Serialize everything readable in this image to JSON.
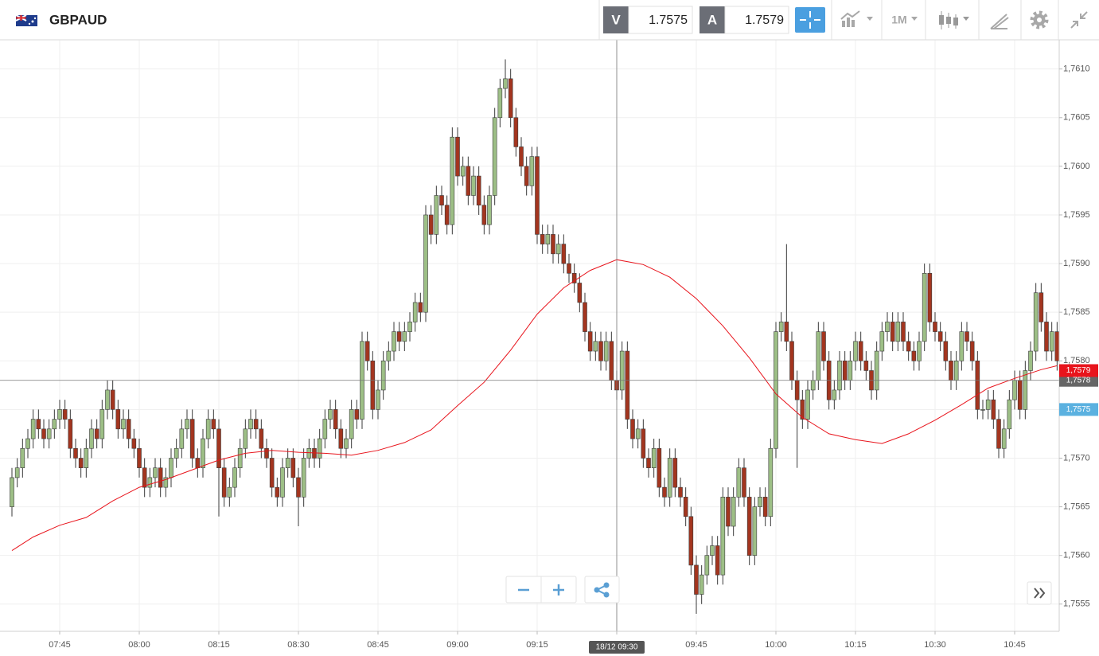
{
  "toolbar": {
    "symbol": "GBPAUD",
    "bid_label": "V",
    "bid": "1.7575",
    "ask_label": "A",
    "ask": "1.7579",
    "timeframe": "1M"
  },
  "chart_data": {
    "type": "candlestick",
    "x": [
      "07:36",
      "07:37",
      "07:38",
      "07:39",
      "07:40",
      "07:41",
      "07:42",
      "07:43",
      "07:44",
      "07:45",
      "07:46",
      "07:47",
      "07:48",
      "07:49",
      "07:50",
      "07:51",
      "07:52",
      "07:53",
      "07:54",
      "07:55",
      "07:56",
      "07:57",
      "07:58",
      "07:59",
      "08:00",
      "08:01",
      "08:02",
      "08:03",
      "08:04",
      "08:05",
      "08:06",
      "08:07",
      "08:08",
      "08:09",
      "08:10",
      "08:11",
      "08:12",
      "08:13",
      "08:14",
      "08:15",
      "08:16",
      "08:17",
      "08:18",
      "08:19",
      "08:20",
      "08:21",
      "08:22",
      "08:23",
      "08:24",
      "08:25",
      "08:26",
      "08:27",
      "08:28",
      "08:29",
      "08:30",
      "08:31",
      "08:32",
      "08:33",
      "08:34",
      "08:35",
      "08:36",
      "08:37",
      "08:38",
      "08:39",
      "08:40",
      "08:41",
      "08:42",
      "08:43",
      "08:44",
      "08:45",
      "08:46",
      "08:47",
      "08:48",
      "08:49",
      "08:50",
      "08:51",
      "08:52",
      "08:53",
      "08:54",
      "08:55",
      "08:56",
      "08:57",
      "08:58",
      "08:59",
      "09:00",
      "09:01",
      "09:02",
      "09:03",
      "09:04",
      "09:05",
      "09:06",
      "09:07",
      "09:08",
      "09:09",
      "09:10",
      "09:11",
      "09:12",
      "09:13",
      "09:14",
      "09:15",
      "09:16",
      "09:17",
      "09:18",
      "09:19",
      "09:20",
      "09:21",
      "09:22",
      "09:23",
      "09:24",
      "09:25",
      "09:26",
      "09:27",
      "09:28",
      "09:29",
      "09:30",
      "09:31",
      "09:32",
      "09:33",
      "09:34",
      "09:35",
      "09:36",
      "09:37",
      "09:38",
      "09:39",
      "09:40",
      "09:41",
      "09:42",
      "09:43",
      "09:44",
      "09:45",
      "09:46",
      "09:47",
      "09:48",
      "09:49",
      "09:50",
      "09:51",
      "09:52",
      "09:53",
      "09:54",
      "09:55",
      "09:56",
      "09:57",
      "09:58",
      "09:59",
      "10:00",
      "10:01",
      "10:02",
      "10:03",
      "10:04",
      "10:05",
      "10:06",
      "10:07",
      "10:08",
      "10:09",
      "10:10",
      "10:11",
      "10:12",
      "10:13",
      "10:14",
      "10:15",
      "10:16",
      "10:17",
      "10:18",
      "10:19",
      "10:20",
      "10:21",
      "10:22",
      "10:23",
      "10:24",
      "10:25",
      "10:26",
      "10:27",
      "10:28",
      "10:29",
      "10:30",
      "10:31",
      "10:32",
      "10:33",
      "10:34",
      "10:35",
      "10:36",
      "10:37",
      "10:38",
      "10:39",
      "10:40",
      "10:41",
      "10:42",
      "10:43",
      "10:44",
      "10:45",
      "10:46",
      "10:47",
      "10:48",
      "10:49",
      "10:50",
      "10:51",
      "10:52",
      "10:53"
    ],
    "open": [
      1.7565,
      1.7568,
      1.7569,
      1.7571,
      1.7572,
      1.7574,
      1.7573,
      1.7572,
      1.7573,
      1.7574,
      1.7575,
      1.7574,
      1.7571,
      1.757,
      1.7569,
      1.7571,
      1.7573,
      1.7572,
      1.7575,
      1.7577,
      1.7575,
      1.7573,
      1.7574,
      1.7572,
      1.7571,
      1.7569,
      1.7567,
      1.7568,
      1.7569,
      1.7567,
      1.7568,
      1.757,
      1.7571,
      1.7573,
      1.7574,
      1.757,
      1.7569,
      1.7572,
      1.7574,
      1.7573,
      1.7569,
      1.7566,
      1.7567,
      1.7569,
      1.7571,
      1.7573,
      1.7574,
      1.7573,
      1.7571,
      1.757,
      1.7567,
      1.7566,
      1.7569,
      1.757,
      1.7568,
      1.7566,
      1.757,
      1.7571,
      1.757,
      1.7572,
      1.7574,
      1.7575,
      1.7573,
      1.7571,
      1.7572,
      1.7575,
      1.7574,
      1.7582,
      1.758,
      1.7575,
      1.7577,
      1.758,
      1.7581,
      1.7583,
      1.7582,
      1.7583,
      1.7584,
      1.7586,
      1.7585,
      1.7595,
      1.7593,
      1.7597,
      1.7596,
      1.7594,
      1.7603,
      1.7599,
      1.76,
      1.7597,
      1.7599,
      1.7596,
      1.7594,
      1.7597,
      1.7605,
      1.7608,
      1.7609,
      1.7605,
      1.7602,
      1.76,
      1.7598,
      1.7601,
      1.7593,
      1.7592,
      1.7593,
      1.7591,
      1.7592,
      1.759,
      1.7589,
      1.7588,
      1.7586,
      1.7583,
      1.7581,
      1.7582,
      1.758,
      1.7582,
      1.7578,
      1.7577,
      1.7581,
      1.7574,
      1.7572,
      1.7573,
      1.757,
      1.7569,
      1.7571,
      1.7567,
      1.7566,
      1.757,
      1.7567,
      1.7566,
      1.7564,
      1.7559,
      1.7556,
      1.7558,
      1.756,
      1.7561,
      1.7558,
      1.7566,
      1.7563,
      1.7566,
      1.7569,
      1.7566,
      1.756,
      1.7565,
      1.7566,
      1.7564,
      1.7571,
      1.7583,
      1.7584,
      1.7582,
      1.7578,
      1.7576,
      1.7574,
      1.7577,
      1.7578,
      1.7583,
      1.758,
      1.7576,
      1.7577,
      1.758,
      1.7578,
      1.758,
      1.7582,
      1.758,
      1.7579,
      1.7577,
      1.7581,
      1.7583,
      1.7584,
      1.7582,
      1.7584,
      1.7582,
      1.7581,
      1.758,
      1.7582,
      1.7589,
      1.7584,
      1.7583,
      1.7582,
      1.758,
      1.7578,
      1.758,
      1.7583,
      1.7582,
      1.758,
      1.7575,
      1.7575,
      1.7576,
      1.7574,
      1.7571,
      1.7573,
      1.7576,
      1.7578,
      1.7575,
      1.7579,
      1.7581,
      1.7587,
      1.7584,
      1.7581,
      1.7583
    ],
    "high": [
      1.7569,
      1.757,
      1.7572,
      1.7573,
      1.7575,
      1.7575,
      1.7574,
      1.7574,
      1.7575,
      1.7576,
      1.7576,
      1.7575,
      1.7572,
      1.7571,
      1.7572,
      1.7574,
      1.7574,
      1.7576,
      1.7578,
      1.7578,
      1.7576,
      1.7575,
      1.7575,
      1.7573,
      1.7572,
      1.757,
      1.7569,
      1.757,
      1.757,
      1.7569,
      1.7571,
      1.7572,
      1.7574,
      1.7575,
      1.7575,
      1.7571,
      1.7573,
      1.7575,
      1.7575,
      1.7574,
      1.757,
      1.7568,
      1.757,
      1.7572,
      1.7574,
      1.7575,
      1.7575,
      1.7574,
      1.7572,
      1.7571,
      1.7568,
      1.757,
      1.7571,
      1.7571,
      1.7569,
      1.7571,
      1.7572,
      1.7572,
      1.7573,
      1.7575,
      1.7576,
      1.7576,
      1.7574,
      1.7573,
      1.7576,
      1.7576,
      1.7583,
      1.7583,
      1.7581,
      1.7578,
      1.7581,
      1.7582,
      1.7584,
      1.7584,
      1.7584,
      1.7585,
      1.7587,
      1.7587,
      1.7596,
      1.7596,
      1.7598,
      1.7598,
      1.7597,
      1.7604,
      1.7604,
      1.7601,
      1.7601,
      1.76,
      1.76,
      1.7597,
      1.7598,
      1.7606,
      1.7609,
      1.7611,
      1.761,
      1.7606,
      1.7603,
      1.7601,
      1.7602,
      1.7602,
      1.7594,
      1.7594,
      1.7594,
      1.7593,
      1.7593,
      1.7591,
      1.759,
      1.7589,
      1.7587,
      1.7584,
      1.7583,
      1.7583,
      1.7583,
      1.7583,
      1.7579,
      1.7582,
      1.7582,
      1.7575,
      1.7574,
      1.7574,
      1.7571,
      1.7572,
      1.7572,
      1.7568,
      1.7571,
      1.7571,
      1.7568,
      1.7567,
      1.7565,
      1.756,
      1.7559,
      1.7561,
      1.7562,
      1.7562,
      1.7567,
      1.7567,
      1.7567,
      1.757,
      1.757,
      1.7567,
      1.7566,
      1.7567,
      1.7567,
      1.7572,
      1.7584,
      1.7585,
      1.7592,
      1.7583,
      1.7579,
      1.7577,
      1.7578,
      1.7579,
      1.7584,
      1.7584,
      1.7581,
      1.7578,
      1.7581,
      1.7581,
      1.7581,
      1.7583,
      1.7583,
      1.7581,
      1.758,
      1.7582,
      1.7584,
      1.7585,
      1.7585,
      1.7585,
      1.7585,
      1.7583,
      1.7582,
      1.7583,
      1.759,
      1.759,
      1.7585,
      1.7584,
      1.7583,
      1.7581,
      1.7581,
      1.7584,
      1.7584,
      1.7583,
      1.7581,
      1.7576,
      1.7577,
      1.7577,
      1.7575,
      1.7574,
      1.7577,
      1.7579,
      1.7579,
      1.758,
      1.7582,
      1.7588,
      1.7588,
      1.7585,
      1.7584,
      1.7584
    ],
    "low": [
      1.7564,
      1.7567,
      1.7568,
      1.757,
      1.7571,
      1.7572,
      1.7571,
      1.7571,
      1.7572,
      1.7573,
      1.7573,
      1.757,
      1.7569,
      1.7568,
      1.7568,
      1.757,
      1.7571,
      1.7571,
      1.7574,
      1.7574,
      1.7572,
      1.7572,
      1.7571,
      1.757,
      1.7568,
      1.7566,
      1.7566,
      1.7567,
      1.7566,
      1.7566,
      1.7567,
      1.7569,
      1.757,
      1.7572,
      1.7569,
      1.7568,
      1.7568,
      1.7571,
      1.7572,
      1.7564,
      1.7565,
      1.7565,
      1.7566,
      1.7568,
      1.757,
      1.7572,
      1.7572,
      1.757,
      1.7569,
      1.7566,
      1.7565,
      1.7565,
      1.7568,
      1.7567,
      1.7563,
      1.7565,
      1.7569,
      1.7569,
      1.7569,
      1.7571,
      1.7573,
      1.7572,
      1.757,
      1.757,
      1.7571,
      1.7573,
      1.7573,
      1.7579,
      1.7574,
      1.7574,
      1.7576,
      1.7579,
      1.758,
      1.7581,
      1.7581,
      1.7582,
      1.7583,
      1.7584,
      1.7584,
      1.7592,
      1.7592,
      1.7595,
      1.7593,
      1.7593,
      1.7598,
      1.7598,
      1.7596,
      1.7596,
      1.7595,
      1.7593,
      1.7593,
      1.7596,
      1.7604,
      1.7607,
      1.7604,
      1.7601,
      1.7599,
      1.7597,
      1.7597,
      1.7592,
      1.7591,
      1.7591,
      1.759,
      1.759,
      1.7589,
      1.7588,
      1.7587,
      1.7585,
      1.7582,
      1.758,
      1.758,
      1.7579,
      1.7579,
      1.7577,
      1.7576,
      1.7576,
      1.7573,
      1.7571,
      1.7571,
      1.7569,
      1.7568,
      1.7568,
      1.7566,
      1.7565,
      1.7565,
      1.7566,
      1.7565,
      1.7563,
      1.7558,
      1.7554,
      1.7555,
      1.7557,
      1.7559,
      1.7557,
      1.7557,
      1.7562,
      1.7562,
      1.7565,
      1.7565,
      1.7559,
      1.7559,
      1.7564,
      1.7563,
      1.7563,
      1.757,
      1.7582,
      1.7581,
      1.7577,
      1.7569,
      1.7573,
      1.7573,
      1.7576,
      1.7577,
      1.7579,
      1.7575,
      1.7575,
      1.7576,
      1.7577,
      1.7577,
      1.7579,
      1.7579,
      1.7578,
      1.7576,
      1.7576,
      1.758,
      1.7582,
      1.7581,
      1.7581,
      1.7581,
      1.758,
      1.7579,
      1.7579,
      1.7581,
      1.7583,
      1.7582,
      1.7581,
      1.7579,
      1.7577,
      1.7577,
      1.7579,
      1.7581,
      1.7579,
      1.7574,
      1.7574,
      1.7574,
      1.7573,
      1.757,
      1.757,
      1.7572,
      1.7575,
      1.7574,
      1.7574,
      1.7578,
      1.758,
      1.7583,
      1.758,
      1.758,
      1.7579
    ],
    "close": [
      1.7568,
      1.7569,
      1.7571,
      1.7572,
      1.7574,
      1.7573,
      1.7572,
      1.7573,
      1.7574,
      1.7575,
      1.7574,
      1.7571,
      1.757,
      1.7569,
      1.7571,
      1.7573,
      1.7572,
      1.7575,
      1.7577,
      1.7575,
      1.7573,
      1.7574,
      1.7572,
      1.7571,
      1.7569,
      1.7567,
      1.7568,
      1.7569,
      1.7567,
      1.7568,
      1.757,
      1.7571,
      1.7573,
      1.7574,
      1.757,
      1.7569,
      1.7572,
      1.7574,
      1.7573,
      1.7569,
      1.7566,
      1.7567,
      1.7569,
      1.7571,
      1.7573,
      1.7574,
      1.7573,
      1.7571,
      1.757,
      1.7567,
      1.7566,
      1.7569,
      1.757,
      1.7568,
      1.7566,
      1.757,
      1.7571,
      1.757,
      1.7572,
      1.7574,
      1.7575,
      1.7573,
      1.7571,
      1.7572,
      1.7575,
      1.7574,
      1.7582,
      1.758,
      1.7575,
      1.7577,
      1.758,
      1.7581,
      1.7583,
      1.7582,
      1.7583,
      1.7584,
      1.7586,
      1.7585,
      1.7595,
      1.7593,
      1.7597,
      1.7596,
      1.7594,
      1.7603,
      1.7599,
      1.76,
      1.7597,
      1.7599,
      1.7596,
      1.7594,
      1.7597,
      1.7605,
      1.7608,
      1.7609,
      1.7605,
      1.7602,
      1.76,
      1.7598,
      1.7601,
      1.7593,
      1.7592,
      1.7593,
      1.7591,
      1.7592,
      1.759,
      1.7589,
      1.7588,
      1.7586,
      1.7583,
      1.7581,
      1.7582,
      1.758,
      1.7582,
      1.7578,
      1.7577,
      1.7581,
      1.7574,
      1.7572,
      1.7573,
      1.757,
      1.7569,
      1.7571,
      1.7567,
      1.7566,
      1.757,
      1.7567,
      1.7566,
      1.7564,
      1.7559,
      1.7556,
      1.7558,
      1.756,
      1.7561,
      1.7558,
      1.7566,
      1.7563,
      1.7566,
      1.7569,
      1.7566,
      1.756,
      1.7565,
      1.7566,
      1.7564,
      1.7571,
      1.7583,
      1.7584,
      1.7582,
      1.7578,
      1.7576,
      1.7574,
      1.7577,
      1.7578,
      1.7583,
      1.758,
      1.7576,
      1.7577,
      1.758,
      1.7578,
      1.758,
      1.7582,
      1.758,
      1.7579,
      1.7577,
      1.7581,
      1.7583,
      1.7584,
      1.7582,
      1.7584,
      1.7582,
      1.7581,
      1.758,
      1.7582,
      1.7589,
      1.7584,
      1.7583,
      1.7582,
      1.758,
      1.7578,
      1.758,
      1.7583,
      1.7582,
      1.758,
      1.7575,
      1.7575,
      1.7576,
      1.7574,
      1.7571,
      1.7573,
      1.7576,
      1.7578,
      1.7575,
      1.7579,
      1.7581,
      1.7587,
      1.7584,
      1.7581,
      1.7583,
      1.758
    ],
    "up_color": "#9dbf86",
    "down_color": "#a3351f",
    "ma": {
      "color": "#e8141c",
      "x": [
        "07:36",
        "07:40",
        "07:45",
        "07:50",
        "07:55",
        "08:00",
        "08:05",
        "08:10",
        "08:15",
        "08:20",
        "08:25",
        "08:30",
        "08:35",
        "08:40",
        "08:45",
        "08:50",
        "08:55",
        "09:00",
        "09:05",
        "09:10",
        "09:15",
        "09:20",
        "09:25",
        "09:30",
        "09:35",
        "09:40",
        "09:45",
        "09:50",
        "09:55",
        "10:00",
        "10:05",
        "10:10",
        "10:15",
        "10:20",
        "10:25",
        "10:30",
        "10:35",
        "10:40",
        "10:45",
        "10:50",
        "10:53"
      ],
      "values": [
        1.75605,
        1.75619,
        1.75631,
        1.75639,
        1.75656,
        1.7567,
        1.75678,
        1.75688,
        1.75698,
        1.75705,
        1.75708,
        1.75706,
        1.75705,
        1.75703,
        1.75708,
        1.75716,
        1.75729,
        1.75754,
        1.75778,
        1.75811,
        1.75848,
        1.75875,
        1.75893,
        1.75904,
        1.75899,
        1.75886,
        1.75864,
        1.75836,
        1.75803,
        1.75766,
        1.75742,
        1.75725,
        1.75719,
        1.75715,
        1.75725,
        1.75739,
        1.75755,
        1.75772,
        1.75782,
        1.75791,
        1.75795
      ]
    },
    "ylim": [
      1.75522,
      1.7613
    ],
    "yticks": [
      {
        "value": 1.7555,
        "label": "1,7555"
      },
      {
        "value": 1.756,
        "label": "1,7560"
      },
      {
        "value": 1.7565,
        "label": "1,7565"
      },
      {
        "value": 1.757,
        "label": "1,7570"
      },
      {
        "value": 1.7575,
        "label": "1,7575"
      },
      {
        "value": 1.758,
        "label": "1,7580"
      },
      {
        "value": 1.7585,
        "label": "1,7585"
      },
      {
        "value": 1.759,
        "label": "1,7590"
      },
      {
        "value": 1.7595,
        "label": "1,7595"
      },
      {
        "value": 1.76,
        "label": "1,7600"
      },
      {
        "value": 1.7605,
        "label": "1,7605"
      },
      {
        "value": 1.761,
        "label": "1,7610"
      }
    ],
    "xticks": [
      "07:45",
      "08:00",
      "08:15",
      "08:30",
      "08:45",
      "09:00",
      "09:15",
      "09:30",
      "09:45",
      "10:00",
      "10:15",
      "10:30",
      "10:45"
    ],
    "grid": true,
    "crosshair": {
      "x": "09:30",
      "x_label": "18/12 09:30",
      "y": 1.7578,
      "y_label": "1,7578",
      "color": "#777777"
    },
    "price_markers": [
      {
        "value": 1.7579,
        "label": "1,7579",
        "color": "#e8141c"
      },
      {
        "value": 1.7575,
        "label": "1,7575",
        "color": "#5bb1e0"
      }
    ]
  }
}
